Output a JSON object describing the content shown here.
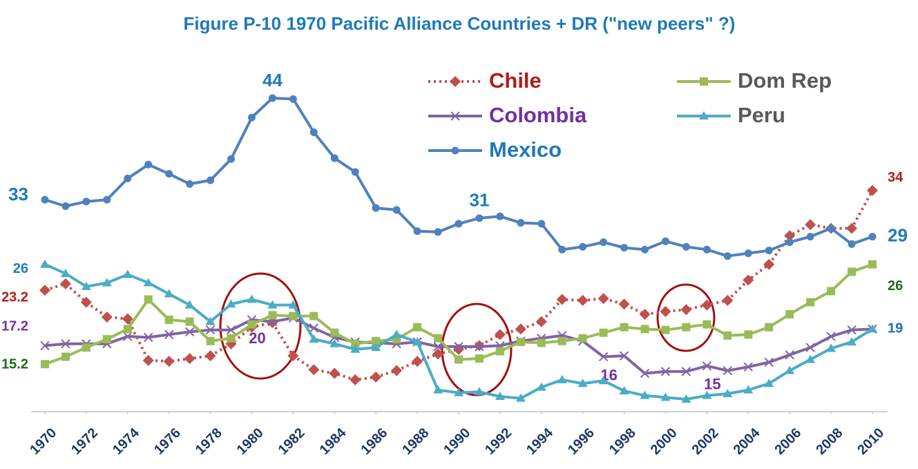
{
  "chart_data": {
    "type": "line",
    "title": "Figure P-10 1970 Pacific Alliance Countries + DR (\"new peers\" ?)",
    "x": [
      1970,
      1971,
      1972,
      1973,
      1974,
      1975,
      1976,
      1977,
      1978,
      1979,
      1980,
      1981,
      1982,
      1983,
      1984,
      1985,
      1986,
      1987,
      1988,
      1989,
      1990,
      1991,
      1992,
      1993,
      1994,
      1995,
      1996,
      1997,
      1998,
      1999,
      2000,
      2001,
      2002,
      2003,
      2004,
      2005,
      2006,
      2007,
      2008,
      2009,
      2010
    ],
    "xlim": [
      1970,
      2010
    ],
    "xticks": [
      1970,
      1972,
      1974,
      1976,
      1978,
      1980,
      1982,
      1984,
      1986,
      1988,
      1990,
      1992,
      1994,
      1996,
      1998,
      2000,
      2002,
      2004,
      2006,
      2008,
      2010
    ],
    "series": [
      {
        "name": "Chile",
        "color": "#c0504d",
        "label_color": "#b01c1c",
        "legend_color": "#b01c1c",
        "marker": "diamond",
        "dash": "dotted",
        "values": [
          23.2,
          23.9,
          21.9,
          20.3,
          20.1,
          15.6,
          15.5,
          15.8,
          16.1,
          17.4,
          19.2,
          19.7,
          16.1,
          14.6,
          14.2,
          13.5,
          13.8,
          14.5,
          15.5,
          16.3,
          16.8,
          17.2,
          18.4,
          19.0,
          19.8,
          22.2,
          22.1,
          22.3,
          21.7,
          20.6,
          20.9,
          21.1,
          21.6,
          22.1,
          24.3,
          26.0,
          29.1,
          30.3,
          29.9,
          29.9,
          34
        ],
        "value_labels": [
          "23.2",
          null,
          null,
          null,
          null,
          null,
          null,
          null,
          null,
          null,
          null,
          null,
          null,
          null,
          null,
          null,
          null,
          null,
          null,
          null,
          null,
          null,
          null,
          null,
          null,
          null,
          null,
          null,
          null,
          null,
          null,
          null,
          null,
          null,
          null,
          null,
          null,
          null,
          null,
          null,
          "34"
        ]
      },
      {
        "name": "Colombia",
        "color": "#8064a2",
        "label_color": "#7030a0",
        "legend_color": "#7030a0",
        "marker": "x",
        "values": [
          17.2,
          17.4,
          17.4,
          17.4,
          18.2,
          18.1,
          18.4,
          18.7,
          18.9,
          18.9,
          20,
          19.8,
          20.2,
          19.1,
          18.1,
          17.6,
          17.5,
          17.4,
          17.6,
          17.1,
          17.1,
          17.1,
          17.2,
          17.7,
          18.0,
          18.3,
          17.7,
          16,
          16.1,
          14.2,
          14.4,
          14.4,
          15,
          14.5,
          14.9,
          15.4,
          16.2,
          17.0,
          18.2,
          18.9,
          19
        ],
        "value_labels": [
          "17.2",
          null,
          null,
          null,
          null,
          null,
          null,
          null,
          null,
          null,
          "20",
          null,
          null,
          null,
          null,
          null,
          null,
          null,
          null,
          null,
          null,
          null,
          null,
          null,
          null,
          null,
          null,
          "16",
          null,
          null,
          null,
          null,
          "15",
          null,
          null,
          null,
          null,
          null,
          null,
          null,
          "19"
        ]
      },
      {
        "name": "Mexico",
        "color": "#4f81bd",
        "label_color": "#1f7ab8",
        "legend_color": "#1f7ab8",
        "marker": "circle",
        "values": [
          33,
          32.3,
          32.8,
          33.0,
          35.3,
          36.8,
          35.8,
          34.7,
          35.1,
          37.4,
          41.9,
          44,
          43.9,
          40.3,
          37.5,
          36.0,
          32.1,
          31.9,
          29.6,
          29.5,
          30.4,
          31,
          31.2,
          30.5,
          30.4,
          27.6,
          27.9,
          28.4,
          27.8,
          27.6,
          28.5,
          27.9,
          27.6,
          26.9,
          27.2,
          27.5,
          28.4,
          29.0,
          29.9,
          28.2,
          29
        ],
        "value_labels": [
          "33",
          null,
          null,
          null,
          null,
          null,
          null,
          null,
          null,
          null,
          null,
          "44",
          null,
          null,
          null,
          null,
          null,
          null,
          null,
          null,
          null,
          "31",
          null,
          null,
          null,
          null,
          null,
          null,
          null,
          null,
          null,
          null,
          null,
          null,
          null,
          null,
          null,
          null,
          null,
          null,
          "29"
        ]
      },
      {
        "name": "Dom Rep",
        "color": "#9bbb59",
        "label_color": "#1e6b1e",
        "legend_color": "#595959",
        "marker": "square",
        "values": [
          15.2,
          16.0,
          17.0,
          17.9,
          19.0,
          22.2,
          20.0,
          19.8,
          17.7,
          18.0,
          19.5,
          20.5,
          20.4,
          20.4,
          18.6,
          17.4,
          17.7,
          17.9,
          19.2,
          18.0,
          15.7,
          15.8,
          16.6,
          17.6,
          17.5,
          17.7,
          18.0,
          18.6,
          19.2,
          19.0,
          18.9,
          19.2,
          19.5,
          18.3,
          18.4,
          19.2,
          20.6,
          21.9,
          23.1,
          25.2,
          26
        ],
        "value_labels": [
          "15.2",
          null,
          null,
          null,
          null,
          null,
          null,
          null,
          null,
          null,
          null,
          null,
          null,
          null,
          null,
          null,
          null,
          null,
          null,
          null,
          null,
          null,
          null,
          null,
          null,
          null,
          null,
          null,
          null,
          null,
          null,
          null,
          null,
          null,
          null,
          null,
          null,
          null,
          null,
          null,
          "26"
        ]
      },
      {
        "name": "Peru",
        "color": "#4bacc6",
        "label_color": "#1f7ab8",
        "legend_color": "#595959",
        "marker": "triangle",
        "values": [
          26,
          25.0,
          23.6,
          24.0,
          24.9,
          24.0,
          22.8,
          21.6,
          19.8,
          21.7,
          22.2,
          21.6,
          21.6,
          17.9,
          17.4,
          16.8,
          17.0,
          18.4,
          17.6,
          12.4,
          12.1,
          12.2,
          11.7,
          11.5,
          12.7,
          13.5,
          13.1,
          13.4,
          12.3,
          11.8,
          11.6,
          11.4,
          11.8,
          12.0,
          12.4,
          13.1,
          14.5,
          15.7,
          16.9,
          17.6,
          19
        ],
        "value_labels": [
          "26",
          null,
          null,
          null,
          null,
          null,
          null,
          null,
          null,
          null,
          null,
          null,
          null,
          null,
          null,
          null,
          null,
          null,
          null,
          null,
          null,
          null,
          null,
          null,
          null,
          null,
          null,
          null,
          null,
          null,
          null,
          null,
          null,
          null,
          null,
          null,
          null,
          null,
          null,
          null,
          "19"
        ]
      }
    ]
  }
}
